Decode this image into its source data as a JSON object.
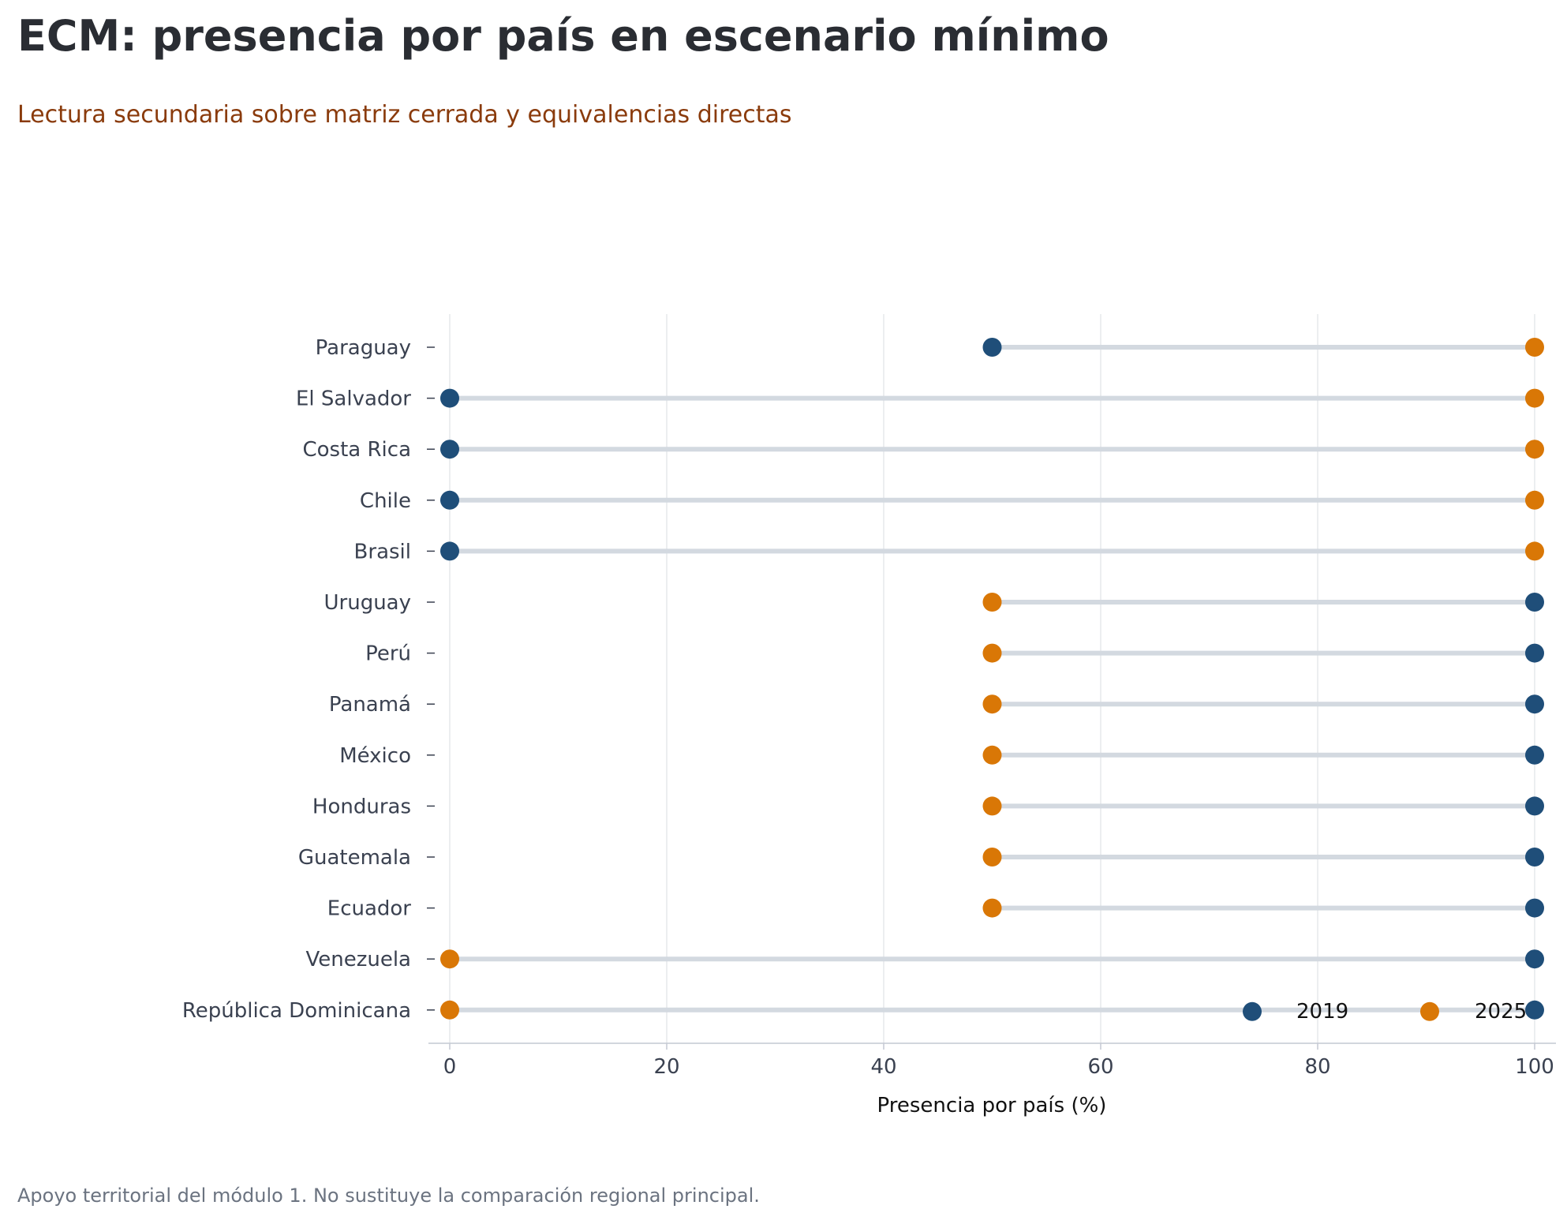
{
  "title": "ECM: presencia por país en escenario mínimo",
  "subtitle": "Lectura secundaria sobre matriz cerrada y equivalencias directas",
  "footnote": "Apoyo territorial del módulo 1. No sustituye la comparación regional principal.",
  "colors": {
    "series_2019": "#1f4e79",
    "series_2025": "#d97706",
    "connector": "#d3d9e0",
    "grid": "#e5e8ec",
    "axis": "#c4c9d2",
    "tick_text": "#3a4150",
    "axis_label": "#111111"
  },
  "chart_data": {
    "type": "dumbbell",
    "title": "ECM: presencia por país en escenario mínimo",
    "subtitle": "Lectura secundaria sobre matriz cerrada y equivalencias directas",
    "xlabel": "Presencia por país (%)",
    "ylabel": "",
    "xlim": [
      -2,
      102
    ],
    "xticks": [
      0,
      20,
      40,
      60,
      80,
      100
    ],
    "grid": "x",
    "legend_position": "bottom-right",
    "categories": [
      "Paraguay",
      "El Salvador",
      "Costa Rica",
      "Chile",
      "Brasil",
      "Uruguay",
      "Perú",
      "Panamá",
      "México",
      "Honduras",
      "Guatemala",
      "Ecuador",
      "Venezuela",
      "República Dominicana"
    ],
    "series": [
      {
        "name": "2019",
        "values": [
          50,
          0,
          0,
          0,
          0,
          100,
          100,
          100,
          100,
          100,
          100,
          100,
          100,
          100
        ]
      },
      {
        "name": "2025",
        "values": [
          100,
          100,
          100,
          100,
          100,
          50,
          50,
          50,
          50,
          50,
          50,
          50,
          0,
          0
        ]
      }
    ]
  }
}
